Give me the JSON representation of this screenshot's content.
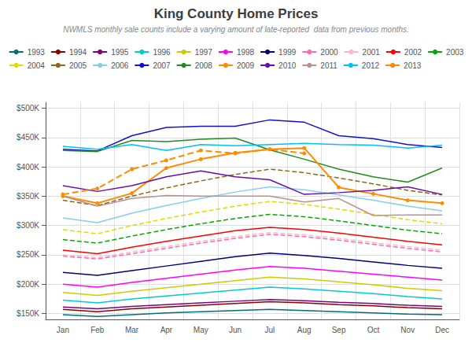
{
  "chart_data": {
    "type": "line",
    "title": "King County Home Prices",
    "subtitle": "NWMLS monthly sale counts include a varying amount of late-reported  data from previous months.",
    "categories": [
      "Jan",
      "Feb",
      "Mar",
      "Apr",
      "May",
      "Jun",
      "Jul",
      "Aug",
      "Sep",
      "Oct",
      "Nov",
      "Dec"
    ],
    "series": [
      {
        "name": "1993",
        "color": "#007070",
        "line_style": "solid",
        "values": [
          148000,
          145000,
          148000,
          151000,
          153000,
          155000,
          157000,
          155000,
          153000,
          151000,
          149000,
          148000
        ]
      },
      {
        "name": "1994",
        "color": "#8B0000",
        "line_style": "solid",
        "values": [
          157000,
          153000,
          158000,
          161000,
          164000,
          167000,
          170000,
          168000,
          165000,
          163000,
          160000,
          158000
        ]
      },
      {
        "name": "1995",
        "color": "#800080",
        "line_style": "solid",
        "values": [
          161000,
          158000,
          162000,
          165000,
          168000,
          171000,
          174000,
          172000,
          169000,
          167000,
          164000,
          162000
        ]
      },
      {
        "name": "1996",
        "color": "#00CCCC",
        "line_style": "solid",
        "values": [
          173000,
          168000,
          175000,
          180000,
          185000,
          190000,
          195000,
          192000,
          188000,
          184000,
          179000,
          175000
        ]
      },
      {
        "name": "1997",
        "color": "#CCCC00",
        "line_style": "solid",
        "values": [
          186000,
          181000,
          188000,
          194000,
          200000,
          206000,
          212000,
          209000,
          204000,
          199000,
          193000,
          189000
        ]
      },
      {
        "name": "1998",
        "color": "#FF00FF",
        "line_style": "solid",
        "values": [
          200000,
          195000,
          203000,
          210000,
          217000,
          224000,
          230000,
          227000,
          222000,
          217000,
          212000,
          207000
        ]
      },
      {
        "name": "1999",
        "color": "#000080",
        "line_style": "solid",
        "values": [
          220000,
          215000,
          223000,
          231000,
          239000,
          247000,
          253000,
          249000,
          244000,
          238000,
          232000,
          227000
        ]
      },
      {
        "name": "2000",
        "color": "#FF69B4",
        "line_style": "dashed",
        "values": [
          248000,
          243000,
          252000,
          261000,
          270000,
          278000,
          285000,
          281000,
          275000,
          268000,
          261000,
          255000
        ]
      },
      {
        "name": "2001",
        "color": "#FFB6C1",
        "line_style": "dashed",
        "values": [
          250000,
          245000,
          255000,
          264000,
          273000,
          281000,
          288000,
          284000,
          278000,
          271000,
          264000,
          258000
        ]
      },
      {
        "name": "2002",
        "color": "#FF0000",
        "line_style": "solid",
        "values": [
          258000,
          252000,
          263000,
          273000,
          282000,
          291000,
          297000,
          293000,
          287000,
          280000,
          273000,
          267000
        ]
      },
      {
        "name": "2003",
        "color": "#00AA00",
        "line_style": "dashed",
        "values": [
          276000,
          270000,
          282000,
          293000,
          303000,
          312000,
          319000,
          315000,
          308000,
          300000,
          292000,
          286000
        ]
      },
      {
        "name": "2004",
        "color": "#DDDD00",
        "line_style": "dashed",
        "values": [
          293000,
          286000,
          300000,
          312000,
          323000,
          333000,
          341000,
          336000,
          328000,
          319000,
          310000,
          303000
        ]
      },
      {
        "name": "2005",
        "color": "#8B6914",
        "line_style": "dashed",
        "values": [
          343000,
          334000,
          350000,
          364000,
          376000,
          387000,
          396000,
          390000,
          381000,
          371000,
          360000,
          352000
        ]
      },
      {
        "name": "2006",
        "color": "#87CEEB",
        "line_style": "solid",
        "values": [
          313000,
          305000,
          321000,
          334000,
          346000,
          357000,
          366000,
          361000,
          352000,
          343000,
          333000,
          325000
        ]
      },
      {
        "name": "2007",
        "color": "#1111CC",
        "line_style": "solid",
        "values": [
          430000,
          427000,
          453000,
          467000,
          469000,
          469000,
          480000,
          476000,
          453000,
          448000,
          438000,
          433000
        ]
      },
      {
        "name": "2008",
        "color": "#228B22",
        "line_style": "solid",
        "values": [
          428000,
          426000,
          445000,
          443000,
          447000,
          449000,
          429000,
          413000,
          396000,
          383000,
          374000,
          398000
        ]
      },
      {
        "name": "2009",
        "color": "#FF8C00",
        "line_style": "solid",
        "marker": "circle",
        "values": [
          350000,
          338000,
          355000,
          398000,
          413000,
          424000,
          430000,
          432000,
          365000,
          354000,
          343000,
          338000
        ]
      },
      {
        "name": "2010",
        "color": "#6A0DAD",
        "line_style": "solid",
        "values": [
          368000,
          358000,
          368000,
          383000,
          393000,
          383000,
          378000,
          353000,
          356000,
          360000,
          366000,
          353000
        ]
      },
      {
        "name": "2011",
        "color": "#BC8F8F",
        "line_style": "solid",
        "values": [
          350000,
          333000,
          346000,
          351000,
          350000,
          350000,
          350000,
          340000,
          346000,
          317000,
          318000,
          318000
        ]
      },
      {
        "name": "2012",
        "color": "#00BFFF",
        "line_style": "solid",
        "values": [
          435000,
          430000,
          438000,
          428000,
          438000,
          436000,
          438000,
          440000,
          438000,
          437000,
          432000,
          437000
        ]
      },
      {
        "name": "2013",
        "color": "#FF8C00",
        "line_style": "dashed",
        "marker": "circle",
        "values": [
          353000,
          363000,
          396000,
          411000,
          428000,
          423000,
          430000,
          423000,
          null,
          null,
          null,
          null
        ]
      }
    ],
    "ylim": [
      140000,
      510000
    ],
    "yticks": [
      {
        "value": 150000,
        "label": "$150K"
      },
      {
        "value": 200000,
        "label": "$200K"
      },
      {
        "value": 250000,
        "label": "$250K"
      },
      {
        "value": 300000,
        "label": "$300K"
      },
      {
        "value": 350000,
        "label": "$350K"
      },
      {
        "value": 400000,
        "label": "$400K"
      },
      {
        "value": 450000,
        "label": "$450K"
      },
      {
        "value": 500000,
        "label": "$500K"
      }
    ],
    "grid": true,
    "legend": "top"
  }
}
